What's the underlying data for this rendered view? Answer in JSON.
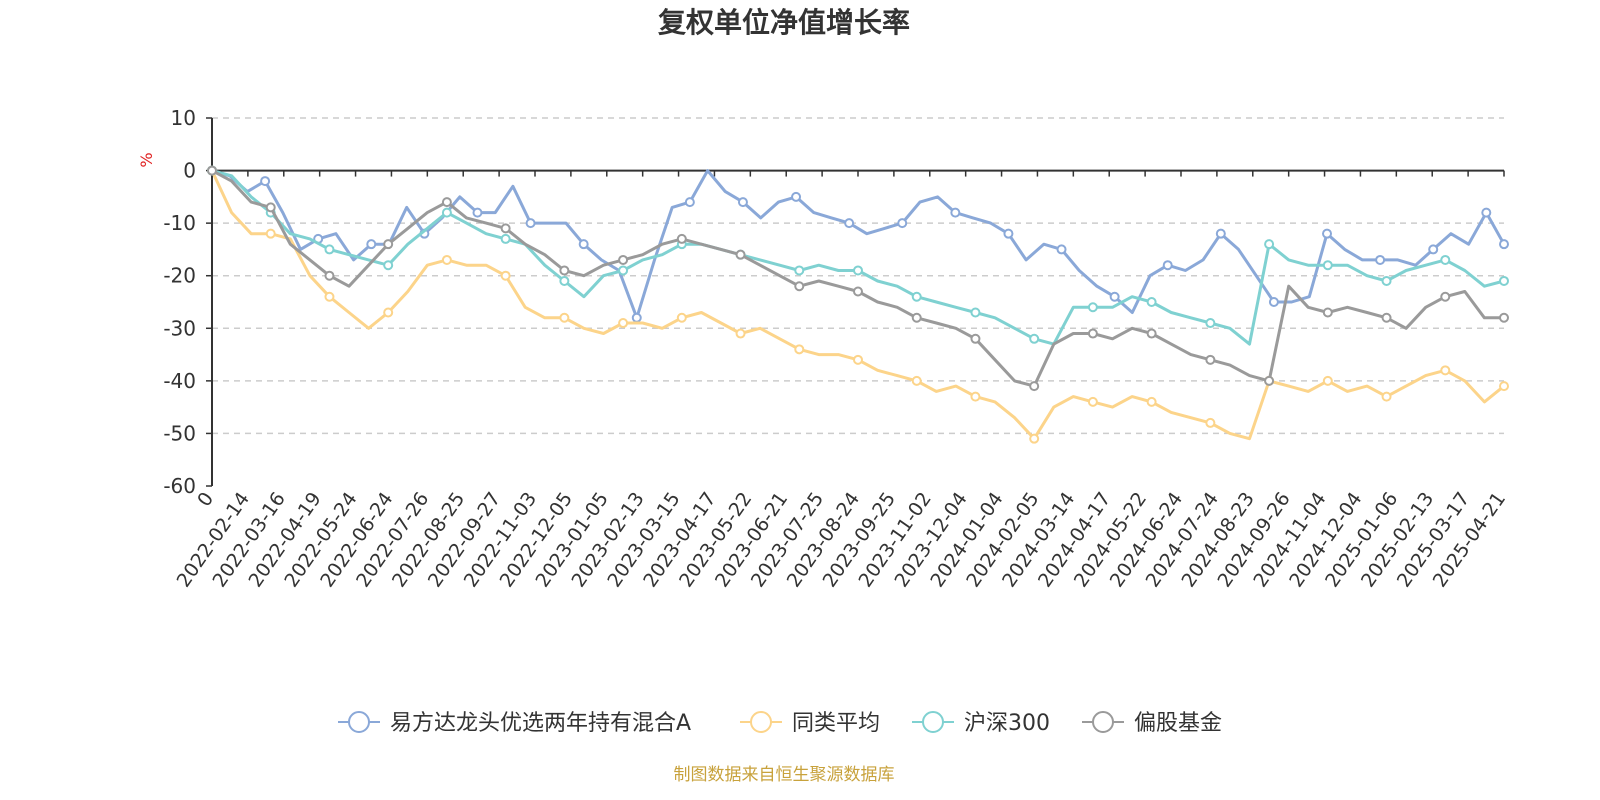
{
  "chart_data": {
    "type": "line",
    "title": "复权单位净值增长率",
    "ylabel": "%",
    "ylim": [
      -60,
      10
    ],
    "y_ticks": [
      10,
      0,
      -10,
      -20,
      -30,
      -40,
      -50,
      -60
    ],
    "x_tick_labels": [
      "0",
      "2022-02-14",
      "2022-03-16",
      "2022-04-19",
      "2022-05-24",
      "2022-06-24",
      "2022-07-26",
      "2022-08-25",
      "2022-09-27",
      "2022-11-03",
      "2022-12-05",
      "2023-01-05",
      "2023-02-13",
      "2023-03-15",
      "2023-04-17",
      "2023-05-22",
      "2023-06-21",
      "2023-07-25",
      "2023-08-24",
      "2023-09-25",
      "2023-11-02",
      "2023-12-04",
      "2024-01-04",
      "2024-02-05",
      "2024-03-14",
      "2024-04-17",
      "2024-05-22",
      "2024-06-24",
      "2024-07-24",
      "2024-08-23",
      "2024-09-26",
      "2024-11-04",
      "2024-12-04",
      "2025-01-06",
      "2025-02-13",
      "2025-03-17",
      "2025-04-21"
    ],
    "grid": true,
    "legend_position": "bottom",
    "series": [
      {
        "name": "易方达龙头优选两年持有混合A",
        "color": "#8aa8d8",
        "values": [
          0,
          -1,
          -4,
          -2,
          -8,
          -15,
          -13,
          -12,
          -17,
          -14,
          -14,
          -7,
          -12,
          -9,
          -5,
          -8,
          -8,
          -3,
          -10,
          -10,
          -10,
          -14,
          -17,
          -19,
          -28,
          -17,
          -7,
          -6,
          0,
          -4,
          -6,
          -9,
          -6,
          -5,
          -8,
          -9,
          -10,
          -12,
          -11,
          -10,
          -6,
          -5,
          -8,
          -9,
          -10,
          -12,
          -17,
          -14,
          -15,
          -19,
          -22,
          -24,
          -27,
          -20,
          -18,
          -19,
          -17,
          -12,
          -15,
          -20,
          -25,
          -25,
          -24,
          -12,
          -15,
          -17,
          -17,
          -17,
          -18,
          -15,
          -12,
          -14,
          -8,
          -14
        ]
      },
      {
        "name": "同类平均",
        "color": "#fcd48a",
        "values": [
          0,
          -8,
          -12,
          -12,
          -13,
          -20,
          -24,
          -27,
          -30,
          -27,
          -23,
          -18,
          -17,
          -18,
          -18,
          -20,
          -26,
          -28,
          -28,
          -30,
          -31,
          -29,
          -29,
          -30,
          -28,
          -27,
          -29,
          -31,
          -30,
          -32,
          -34,
          -35,
          -35,
          -36,
          -38,
          -39,
          -40,
          -42,
          -41,
          -43,
          -44,
          -47,
          -51,
          -45,
          -43,
          -44,
          -45,
          -43,
          -44,
          -46,
          -47,
          -48,
          -50,
          -51,
          -40,
          -41,
          -42,
          -40,
          -42,
          -41,
          -43,
          -41,
          -39,
          -38,
          -40,
          -44,
          -41
        ]
      },
      {
        "name": "沪深300",
        "color": "#7fd1d1",
        "values": [
          0,
          -1,
          -5,
          -8,
          -12,
          -13,
          -15,
          -16,
          -17,
          -18,
          -14,
          -11,
          -8,
          -10,
          -12,
          -13,
          -14,
          -18,
          -21,
          -24,
          -20,
          -19,
          -17,
          -16,
          -14,
          -14,
          -15,
          -16,
          -17,
          -18,
          -19,
          -18,
          -19,
          -19,
          -21,
          -22,
          -24,
          -25,
          -26,
          -27,
          -28,
          -30,
          -32,
          -33,
          -26,
          -26,
          -26,
          -24,
          -25,
          -27,
          -28,
          -29,
          -30,
          -33,
          -14,
          -17,
          -18,
          -18,
          -18,
          -20,
          -21,
          -19,
          -18,
          -17,
          -19,
          -22,
          -21
        ]
      },
      {
        "name": "偏股基金",
        "color": "#9a9a9a",
        "values": [
          0,
          -2,
          -6,
          -7,
          -14,
          -17,
          -20,
          -22,
          -18,
          -14,
          -11,
          -8,
          -6,
          -9,
          -10,
          -11,
          -14,
          -16,
          -19,
          -20,
          -18,
          -17,
          -16,
          -14,
          -13,
          -14,
          -15,
          -16,
          -18,
          -20,
          -22,
          -21,
          -22,
          -23,
          -25,
          -26,
          -28,
          -29,
          -30,
          -32,
          -36,
          -40,
          -41,
          -33,
          -31,
          -31,
          -32,
          -30,
          -31,
          -33,
          -35,
          -36,
          -37,
          -39,
          -40,
          -22,
          -26,
          -27,
          -26,
          -27,
          -28,
          -30,
          -26,
          -24,
          -23,
          -28,
          -28
        ]
      }
    ]
  },
  "footer": "制图数据来自恒生聚源数据库"
}
